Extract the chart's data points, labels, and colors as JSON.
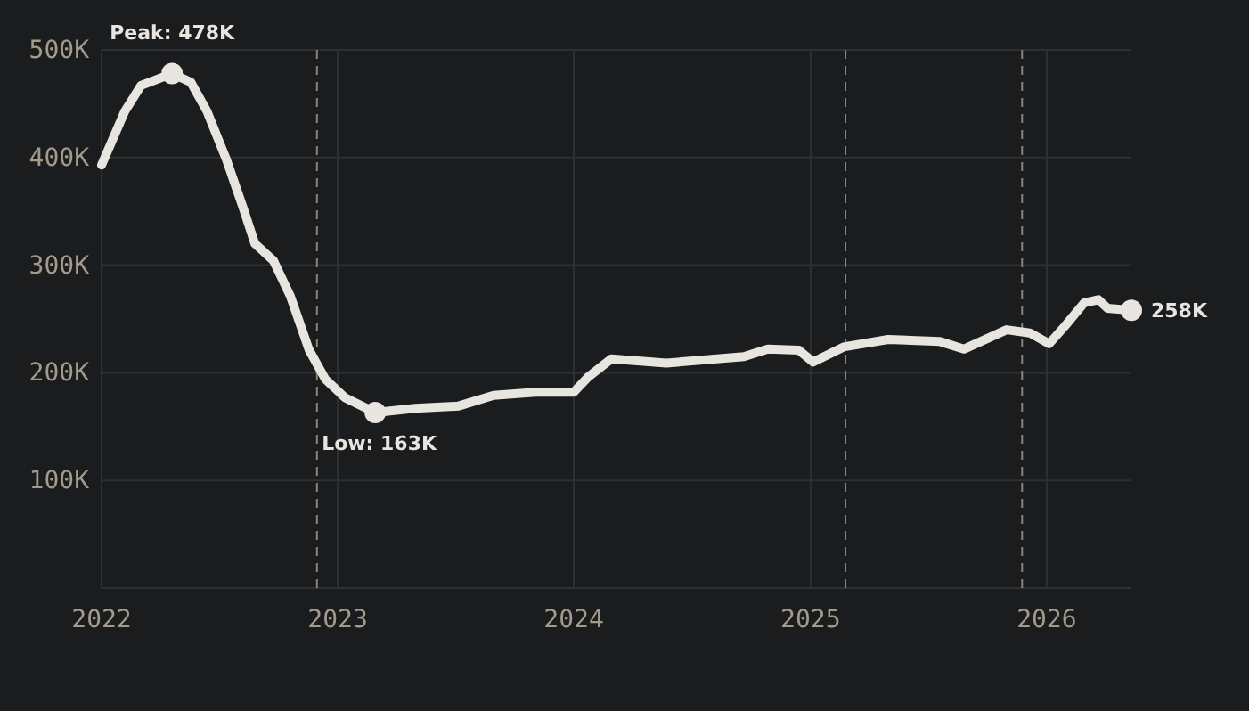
{
  "chart_data": {
    "type": "line",
    "x": [
      "2022-01-01",
      "2022-02-06",
      "2022-03-03",
      "2022-04-20",
      "2022-05-19",
      "2022-06-13",
      "2022-07-13",
      "2022-08-08",
      "2022-08-26",
      "2022-09-24",
      "2022-10-20",
      "2022-11-18",
      "2022-12-13",
      "2023-01-12",
      "2023-02-28",
      "2023-05-01",
      "2023-07-06",
      "2023-08-30",
      "2023-11-03",
      "2024-01-01",
      "2024-01-23",
      "2024-02-28",
      "2024-05-23",
      "2024-09-20",
      "2024-10-27",
      "2024-12-14",
      "2025-01-05",
      "2025-02-21",
      "2025-05-01",
      "2025-07-20",
      "2025-08-26",
      "2025-10-31",
      "2025-12-06",
      "2026-01-05",
      "2026-01-30",
      "2026-02-28",
      "2026-03-22",
      "2026-04-05",
      "2026-05-12"
    ],
    "series": [
      {
        "color": "#e8e4df",
        "values": [
          393000,
          443000,
          467000,
          478000,
          470000,
          443000,
          398000,
          353000,
          320000,
          304000,
          271000,
          221000,
          194000,
          177000,
          163000,
          167000,
          169000,
          179000,
          182000,
          182000,
          196000,
          213000,
          209000,
          215000,
          222000,
          221000,
          210000,
          224000,
          231000,
          229000,
          222000,
          240000,
          237000,
          227000,
          244000,
          265000,
          268000,
          260000,
          258000
        ]
      }
    ],
    "xlim": [
      "2022-01-01",
      "2026-05-12"
    ],
    "xticks": [
      {
        "value": "2022-01-01",
        "label": "2022"
      },
      {
        "value": "2023-01-01",
        "label": "2023"
      },
      {
        "value": "2024-01-01",
        "label": "2024"
      },
      {
        "value": "2025-01-01",
        "label": "2025"
      },
      {
        "value": "2026-01-01",
        "label": "2026"
      }
    ],
    "ylim": [
      0,
      500000
    ],
    "yticks": [
      {
        "value": 100000,
        "label": "100K"
      },
      {
        "value": 200000,
        "label": "200K"
      },
      {
        "value": 300000,
        "label": "300K"
      },
      {
        "value": 400000,
        "label": "400K"
      },
      {
        "value": 500000,
        "label": "500K"
      }
    ],
    "grid": true,
    "ref_lines": [
      {
        "axis": "x",
        "value": "2022-11-30",
        "color": "#8a8478",
        "line_style": "dashed"
      },
      {
        "axis": "x",
        "value": "2025-02-24",
        "color": "#8a8478",
        "line_style": "dashed"
      },
      {
        "axis": "x",
        "value": "2025-11-24",
        "color": "#8a8478",
        "line_style": "dashed"
      }
    ],
    "annotations": [
      {
        "text": "Peak: 478K",
        "x": "2022-04-20",
        "y": 478000
      },
      {
        "text": "Low: 163K",
        "x": "2023-02-28",
        "y": 163000
      },
      {
        "text": "258K",
        "x": "2026-05-12",
        "y": 258000
      }
    ]
  }
}
